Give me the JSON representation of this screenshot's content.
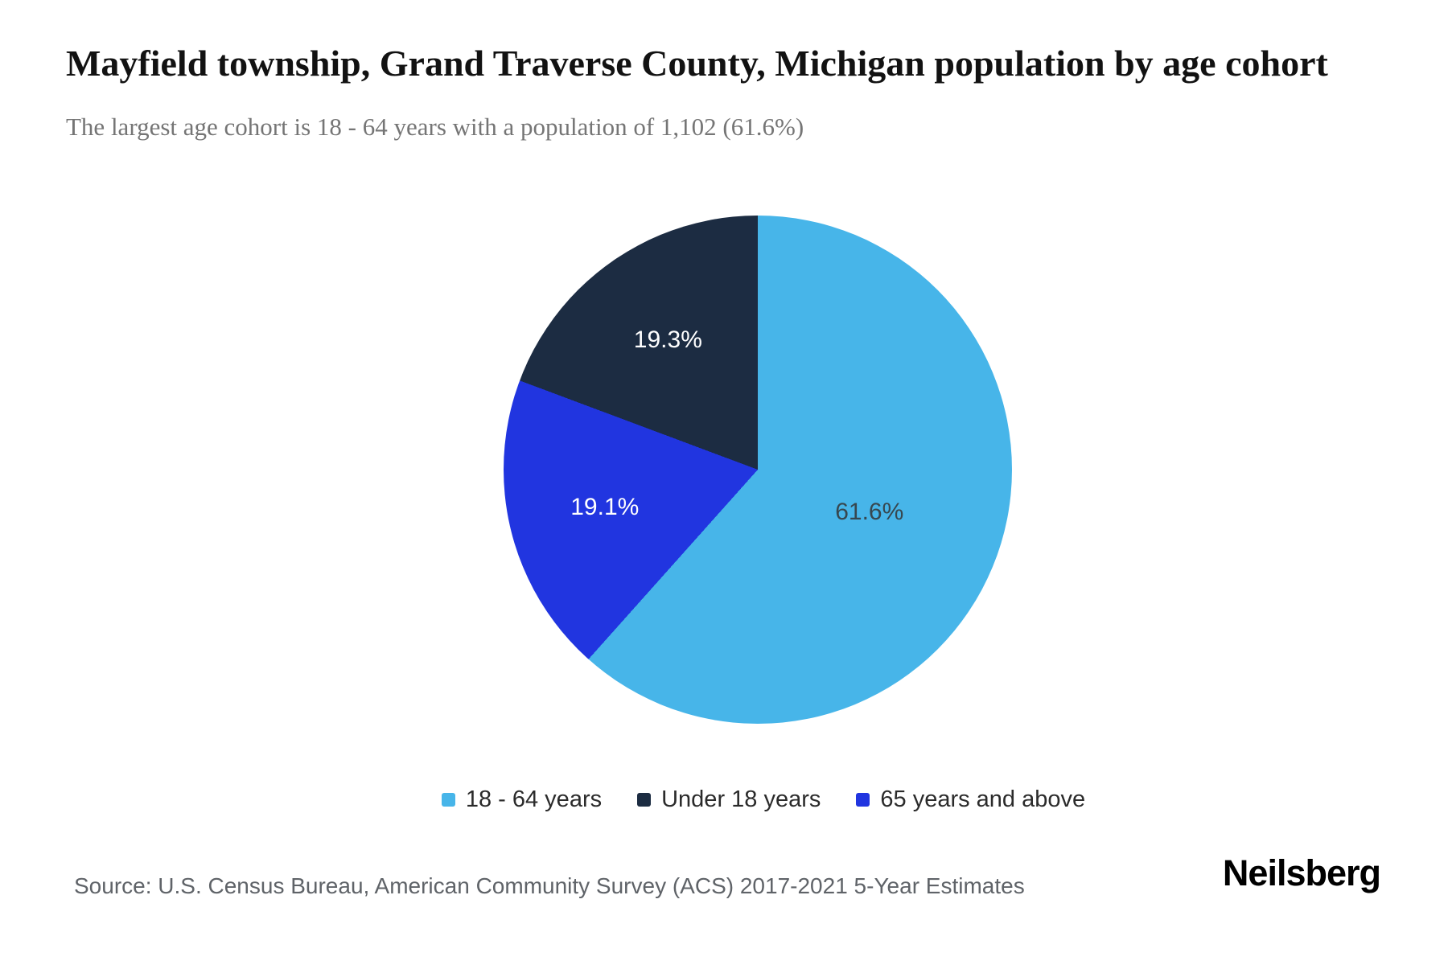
{
  "chart_data": {
    "type": "pie",
    "title": "Mayfield township, Grand Traverse County, Michigan population by age cohort",
    "subtitle": "The largest age cohort is 18 - 64 years with a population of 1,102 (61.6%)",
    "start_angle_deg": 0,
    "direction": "clockwise",
    "legend_position": "bottom",
    "slices": [
      {
        "label": "18 - 64 years",
        "value": 61.6,
        "pct_label": "61.6%",
        "color": "#47B5E9",
        "label_color": "#37474F"
      },
      {
        "label": "65 years and above",
        "value": 19.1,
        "pct_label": "19.1%",
        "color": "#2135E0",
        "label_color": "#FFFFFF"
      },
      {
        "label": "Under 18 years",
        "value": 19.3,
        "pct_label": "19.3%",
        "color": "#1C2C42",
        "label_color": "#FFFFFF"
      }
    ],
    "legend_order": [
      0,
      2,
      1
    ]
  },
  "footer": {
    "source": "Source: U.S. Census Bureau, American Community Survey (ACS) 2017-2021 5-Year Estimates",
    "brand": "Neilsberg"
  }
}
